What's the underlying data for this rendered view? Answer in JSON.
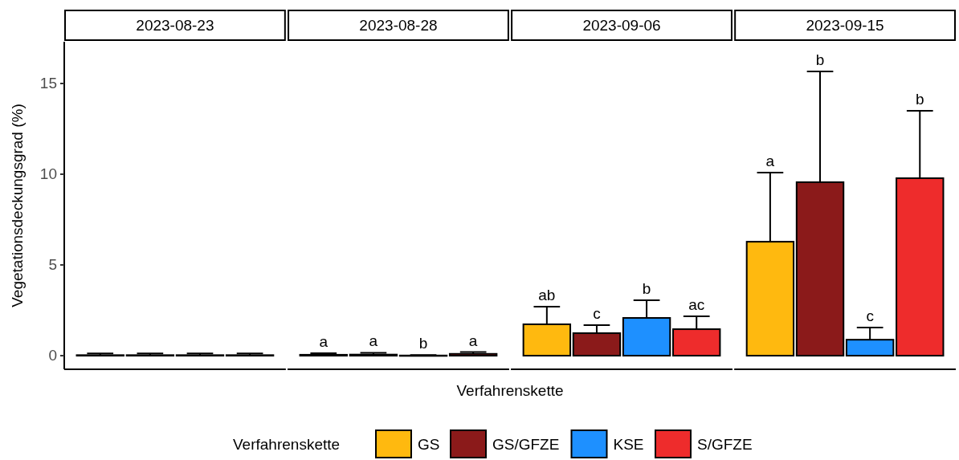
{
  "chart_data": {
    "type": "bar",
    "categories": [
      "2023-08-23",
      "2023-08-28",
      "2023-09-06",
      "2023-09-15"
    ],
    "xlabel": "Verfahrenskette",
    "ylabel": "Vegetationsdeckungsgrad (%)",
    "legend_title": "Verfahrenskette",
    "series": [
      {
        "name": "GS",
        "color": "#ffb90f",
        "values": [
          0.03,
          0.05,
          1.73,
          6.28
        ],
        "errors": [
          [
            0.03,
            0.12
          ],
          [
            0.05,
            0.13
          ],
          [
            1.73,
            2.7
          ],
          [
            6.28,
            10.09
          ]
        ],
        "value_labels": [
          null,
          "a",
          "ab",
          null
        ]
      },
      {
        "name": "GS/GFZE",
        "color": "#8b1a1a",
        "values": [
          0.03,
          0.06,
          1.24,
          9.56
        ],
        "errors": [
          [
            0.03,
            0.12
          ],
          [
            0.06,
            0.16
          ],
          [
            1.24,
            1.68
          ],
          [
            9.56,
            15.66
          ]
        ],
        "value_labels": [
          null,
          "a",
          "c",
          null
        ]
      },
      {
        "name": "KSE",
        "color": "#1e90ff",
        "values": [
          0.03,
          0.01,
          2.08,
          0.88
        ],
        "errors": [
          [
            0.03,
            0.12
          ],
          [
            0.01,
            0.03
          ],
          [
            2.08,
            3.05
          ],
          [
            0.88,
            1.55
          ]
        ],
        "value_labels": [
          null,
          "b",
          "b",
          "c"
        ]
      },
      {
        "name": "S/GFZE",
        "color": "#ee2c2c",
        "values": [
          0.03,
          0.1,
          1.46,
          9.78
        ],
        "errors": [
          [
            0.03,
            0.12
          ],
          [
            0.1,
            0.2
          ],
          [
            1.46,
            2.17
          ],
          [
            9.78,
            13.5
          ]
        ],
        "value_labels": [
          null,
          "a",
          "ac",
          null
        ]
      }
    ],
    "annotations": [
      "a",
      "b",
      "b"
    ],
    "ylim": [
      -0.75,
      17.3
    ],
    "yticks": [
      0,
      5,
      10,
      15
    ],
    "grid": false,
    "legend": "bottom"
  }
}
